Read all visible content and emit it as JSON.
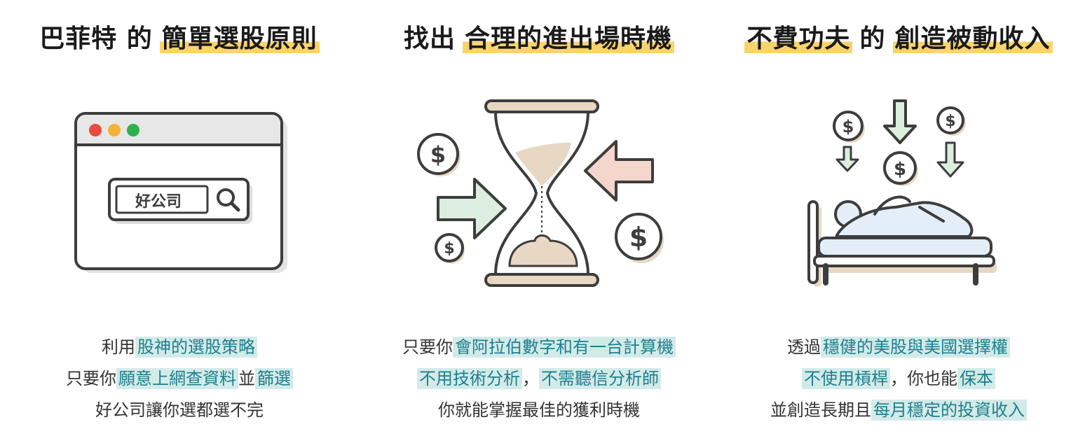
{
  "col1": {
    "title": {
      "t1": "巴菲特 的",
      "t2": "簡單選股原則"
    },
    "search_text": "好公司",
    "desc": {
      "l1a": "利用",
      "l1b": "股神的選股策略",
      "l2a": "只要你",
      "l2b": "願意上網查資料",
      "l2c": "並",
      "l2d": "篩選",
      "l3": "好公司讓你選都選不完"
    }
  },
  "col2": {
    "title": {
      "t1": "找出",
      "t2": "合理的進出場時機"
    },
    "desc": {
      "l1a": "只要你",
      "l1b": "會阿拉伯數字和有一台計算機",
      "l2a": "不用技術分析",
      "l2b": "，",
      "l2c": "不需聽信分析師",
      "l3": "你就能掌握最佳的獲利時機"
    }
  },
  "col3": {
    "title": {
      "t1": "不費功夫",
      "t2": "的",
      "t3": "創造被動收入"
    },
    "desc": {
      "l1a": "透過",
      "l1b": "穩健的美股與美國選擇權",
      "l2a": "不使用槓桿",
      "l2b": "，你也能",
      "l2c": "保本",
      "l3a": "並創造長期且",
      "l3b": "每月穩定的投資收入"
    }
  },
  "dollar_symbol": "$",
  "colors": {
    "highlight_yellow": "#fcd36a",
    "highlight_teal_bg": "#d3ebe8",
    "highlight_teal_text": "#1e7f8f",
    "outline": "#3d3d3d",
    "tan": "#e7d7c3",
    "mint": "#dcefdf",
    "pink": "#f4d6cc",
    "light_blue": "#e4eef8",
    "traffic_red": "#e74c3c",
    "traffic_yellow": "#f5b335",
    "traffic_green": "#2bb24c"
  }
}
